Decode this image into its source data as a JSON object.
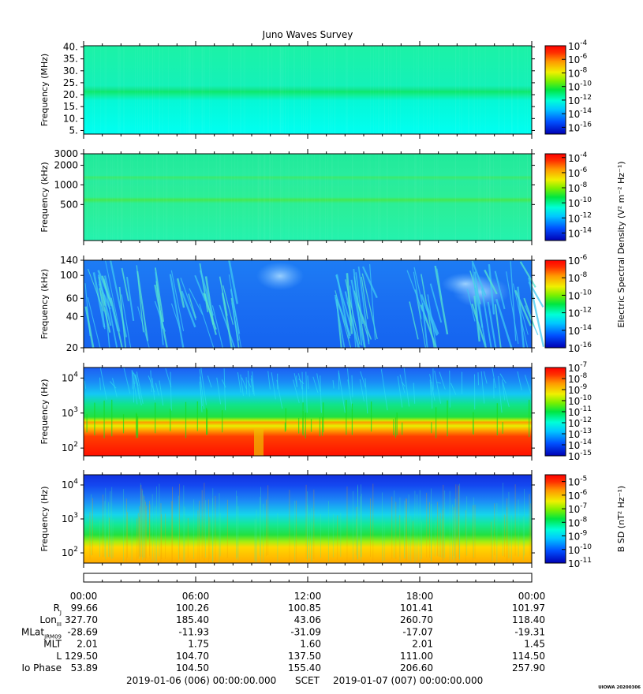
{
  "title": "Juno Waves Survey",
  "footer": {
    "start": "2019-01-06 (006) 00:00:00.000",
    "label": "SCET",
    "end": "2019-01-07 (007) 00:00:00.000",
    "stamp": "UIOWA 20200306"
  },
  "time_ticks": [
    "00:00",
    "06:00",
    "12:00",
    "18:00",
    "00:00"
  ],
  "ephemeris": [
    {
      "label": "R",
      "sub": "J",
      "values": [
        "99.66",
        "100.26",
        "100.85",
        "101.41",
        "101.97"
      ]
    },
    {
      "label": "Lon",
      "sub": "III",
      "values": [
        "327.70",
        "185.40",
        "43.06",
        "260.70",
        "118.40"
      ]
    },
    {
      "label": "MLat",
      "sub": "JRM09",
      "values": [
        "-28.69",
        "-11.93",
        "-31.09",
        "-17.07",
        "-19.31"
      ]
    },
    {
      "label": "MLT",
      "sub": "",
      "values": [
        "2.01",
        "1.75",
        "1.60",
        "2.01",
        "1.45"
      ]
    },
    {
      "label": "L",
      "sub": "",
      "values": [
        "129.50",
        "104.70",
        "137.50",
        "111.00",
        "114.50"
      ]
    },
    {
      "label": "Io Phase",
      "sub": "",
      "values": [
        "53.89",
        "104.50",
        "155.40",
        "206.60",
        "257.90"
      ]
    }
  ],
  "colorbar_labels": {
    "electric": "Electric Spectral Density (V² m⁻² Hz⁻¹)",
    "magnetic": "B SD (nT² Hz⁻¹)"
  },
  "chart_data": [
    {
      "type": "heatmap",
      "ylabel": "Frequency (MHz)",
      "yscale": "linear",
      "ylim": [
        3.5,
        40.5
      ],
      "yticks": [
        {
          "v": 40,
          "label": "40."
        },
        {
          "v": 35,
          "label": "35."
        },
        {
          "v": 30,
          "label": "30."
        },
        {
          "v": 25,
          "label": "25."
        },
        {
          "v": 20,
          "label": "20."
        },
        {
          "v": 15,
          "label": "15."
        },
        {
          "v": 10,
          "label": "10."
        },
        {
          "v": 5,
          "label": "5."
        }
      ],
      "colorbar": {
        "range": [
          -17,
          -4
        ],
        "ticks": [
          -4,
          -6,
          -8,
          -10,
          -12,
          -14,
          -16
        ]
      }
    },
    {
      "type": "heatmap",
      "ylabel": "Frequency (kHz)",
      "yscale": "log",
      "ylim": [
        140,
        3000
      ],
      "yticks": [
        {
          "v": 3000,
          "label": "3000"
        },
        {
          "v": 2000,
          "label": "2000"
        },
        {
          "v": 1000,
          "label": "1000"
        },
        {
          "v": 500,
          "label": "500"
        }
      ],
      "colorbar": {
        "range": [
          -15,
          -3.5
        ],
        "ticks": [
          -4,
          -6,
          -8,
          -10,
          -12,
          -14
        ]
      }
    },
    {
      "type": "heatmap",
      "ylabel": "Frequency (kHz)",
      "yscale": "log",
      "ylim": [
        20,
        140
      ],
      "yticks": [
        {
          "v": 140,
          "label": "140"
        },
        {
          "v": 100,
          "label": "100"
        },
        {
          "v": 60,
          "label": "60"
        },
        {
          "v": 40,
          "label": "40"
        },
        {
          "v": 20,
          "label": "20"
        }
      ],
      "colorbar": {
        "range": [
          -16,
          -6
        ],
        "ticks": [
          -6,
          -8,
          -10,
          -12,
          -14,
          -16
        ]
      }
    },
    {
      "type": "heatmap",
      "ylabel": "Frequency (Hz)",
      "yscale": "log",
      "ylim": [
        60,
        20000
      ],
      "yticks": [
        {
          "v": 10000,
          "label": "10",
          "exp": "4"
        },
        {
          "v": 1000,
          "label": "10",
          "exp": "3"
        },
        {
          "v": 100,
          "label": "10",
          "exp": "2"
        }
      ],
      "colorbar": {
        "range": [
          -15,
          -7
        ],
        "ticks": [
          -7,
          -8,
          -9,
          -10,
          -11,
          -12,
          -13,
          -14,
          -15
        ]
      }
    },
    {
      "type": "heatmap",
      "ylabel": "Frequency (Hz)",
      "yscale": "log",
      "ylim": [
        50,
        20000
      ],
      "yticks": [
        {
          "v": 10000,
          "label": "10",
          "exp": "4"
        },
        {
          "v": 1000,
          "label": "10",
          "exp": "3"
        },
        {
          "v": 100,
          "label": "10",
          "exp": "2"
        }
      ],
      "colorbar": {
        "range": [
          -11,
          -4.5
        ],
        "ticks": [
          -5,
          -6,
          -7,
          -8,
          -9,
          -10,
          -11
        ]
      }
    }
  ]
}
